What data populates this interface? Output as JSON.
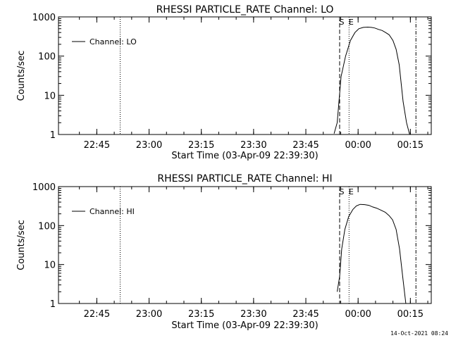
{
  "footer": {
    "timestamp": "14-Oct-2021 08:24"
  },
  "chart_data": [
    {
      "type": "line",
      "title": "RHESSI PARTICLE_RATE Channel: LO",
      "xlabel": "Start Time (03-Apr-09 22:39:30)",
      "ylabel": "Counts/sec",
      "y_scale": "log",
      "ylim": [
        1,
        1000
      ],
      "y_ticks": [
        {
          "value": 1,
          "label": "1"
        },
        {
          "value": 10,
          "label": "10"
        },
        {
          "value": 100,
          "label": "100"
        },
        {
          "value": 1000,
          "label": "1000"
        }
      ],
      "xlim_min": [
        -5.5,
        101.5
      ],
      "x_ticks": [
        {
          "value": 5.5,
          "label": "22:45"
        },
        {
          "value": 20.5,
          "label": "23:00"
        },
        {
          "value": 35.5,
          "label": "23:15"
        },
        {
          "value": 50.5,
          "label": "23:30"
        },
        {
          "value": 65.5,
          "label": "23:45"
        },
        {
          "value": 80.5,
          "label": "00:00"
        },
        {
          "value": 95.5,
          "label": "00:15"
        }
      ],
      "legend": {
        "label": "Channel: LO",
        "position": "top-left"
      },
      "markers": [
        {
          "x": 12.2,
          "style": "dotted",
          "label": ""
        },
        {
          "x": 75.2,
          "style": "dashed",
          "label": "S"
        },
        {
          "x": 77.9,
          "style": "dotted",
          "label": "E"
        },
        {
          "x": 97.1,
          "style": "dashdot",
          "label": ""
        }
      ],
      "series": [
        {
          "x": [
            73.6,
            74.5,
            75.6,
            76.9,
            78.3,
            79.6,
            80.7,
            82.0,
            83.3,
            84.3,
            85.3,
            86.3,
            87.4,
            88.4,
            89.4,
            90.5,
            91.4,
            92.3,
            93.4,
            94.4,
            95.3
          ],
          "y": [
            1.05,
            2,
            30,
            100,
            250,
            400,
            500,
            540,
            550,
            540,
            520,
            480,
            450,
            400,
            350,
            250,
            150,
            60,
            7,
            2,
            1
          ]
        }
      ]
    },
    {
      "type": "line",
      "title": "RHESSI PARTICLE_RATE Channel: HI",
      "xlabel": "Start Time (03-Apr-09 22:39:30)",
      "ylabel": "Counts/sec",
      "y_scale": "log",
      "ylim": [
        1,
        1000
      ],
      "y_ticks": [
        {
          "value": 1,
          "label": "1"
        },
        {
          "value": 10,
          "label": "10"
        },
        {
          "value": 100,
          "label": "100"
        },
        {
          "value": 1000,
          "label": "1000"
        }
      ],
      "xlim_min": [
        -5.5,
        101.5
      ],
      "x_ticks": [
        {
          "value": 5.5,
          "label": "22:45"
        },
        {
          "value": 20.5,
          "label": "23:00"
        },
        {
          "value": 35.5,
          "label": "23:15"
        },
        {
          "value": 50.5,
          "label": "23:30"
        },
        {
          "value": 65.5,
          "label": "23:45"
        },
        {
          "value": 80.5,
          "label": "00:00"
        },
        {
          "value": 95.5,
          "label": "00:15"
        }
      ],
      "legend": {
        "label": "Channel: HI",
        "position": "top-left"
      },
      "markers": [
        {
          "x": 12.2,
          "style": "dotted",
          "label": ""
        },
        {
          "x": 75.2,
          "style": "dashed",
          "label": "S"
        },
        {
          "x": 77.9,
          "style": "dotted",
          "label": "E"
        },
        {
          "x": 97.1,
          "style": "dashdot",
          "label": ""
        }
      ],
      "series": [
        {
          "x": [
            74.5,
            75.2,
            75.8,
            76.7,
            77.8,
            79.0,
            80.0,
            81.1,
            82.4,
            83.6,
            84.7,
            85.8,
            87.0,
            88.3,
            89.4,
            90.4,
            91.4,
            92.4,
            93.4,
            94.2
          ],
          "y": [
            2,
            5,
            25,
            80,
            170,
            260,
            320,
            350,
            345,
            330,
            300,
            280,
            250,
            220,
            180,
            140,
            80,
            25,
            4,
            1
          ]
        }
      ]
    }
  ]
}
